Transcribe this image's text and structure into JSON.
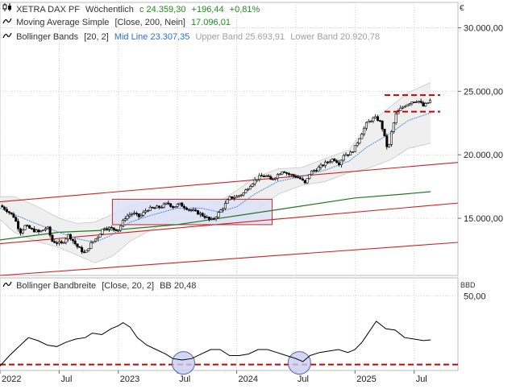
{
  "currency": "€",
  "legend": {
    "instrument": "XETRA DAX PF",
    "period": "Wöchentlich",
    "last": "c 24.359,30",
    "change_abs": "+196,44",
    "change_pct": "+0,81%",
    "ma_label": "Moving Average Simple",
    "ma_params": "[Close, 200, Nein]",
    "ma_value": "17.096,01",
    "bb_label": "Bollinger Bands",
    "bb_params": "[20, 2]",
    "bb_mid": "Mid Line 23.307,35",
    "bb_upper": "Upper Band 25.693,91",
    "bb_lower": "Lower Band 20.920,78"
  },
  "sub_legend": {
    "label": "Bollinger Bandbreite",
    "params": "[Close, 20, 2]",
    "value": "BB 20,48",
    "axis_unit": "BBD"
  },
  "colors": {
    "candle": "#000000",
    "ma": "#1f7a1f",
    "bb_mid": "#3b7fd9",
    "bb_band": "#efefef",
    "channel": "#cc2222",
    "box_fill": "#dde0f7",
    "box_stroke": "#cc2222",
    "circle_fill": "#c9cdf0",
    "circle_stroke": "#5a5fa8",
    "dashed": "#cc0000",
    "grid": "#d0d0d0",
    "green_text": "#1a8f1a",
    "blue_text": "#2a6fd6"
  },
  "chart_data": [
    {
      "type": "candlestick",
      "title": "XETRA DAX PF",
      "timeframe": "weekly",
      "y_ticks": [
        "30.000,00",
        "25.000,00",
        "20.000,00",
        "15.000,00"
      ],
      "y_tick_values": [
        30000,
        25000,
        20000,
        15000
      ],
      "ylim": [
        10500,
        32000
      ],
      "x_ticks": [
        "2022",
        "Jul",
        "2023",
        "Jul",
        "2024",
        "Jul",
        "2025",
        "Jul"
      ],
      "x_tick_values": [
        2022.0,
        2022.5,
        2023.0,
        2023.5,
        2024.0,
        2024.5,
        2025.0,
        2025.5
      ],
      "xlim": [
        2022.0,
        2025.87
      ],
      "grid": true,
      "close_path": [
        [
          2022.0,
          16000
        ],
        [
          2022.05,
          15700
        ],
        [
          2022.12,
          15100
        ],
        [
          2022.17,
          13900
        ],
        [
          2022.21,
          14400
        ],
        [
          2022.27,
          14100
        ],
        [
          2022.33,
          13900
        ],
        [
          2022.4,
          14300
        ],
        [
          2022.44,
          13200
        ],
        [
          2022.52,
          13000
        ],
        [
          2022.58,
          13700
        ],
        [
          2022.65,
          12800
        ],
        [
          2022.72,
          12200
        ],
        [
          2022.76,
          12900
        ],
        [
          2022.82,
          13500
        ],
        [
          2022.88,
          14300
        ],
        [
          2022.94,
          14200
        ],
        [
          2023.0,
          14100
        ],
        [
          2023.06,
          15100
        ],
        [
          2023.12,
          15400
        ],
        [
          2023.18,
          15100
        ],
        [
          2023.24,
          15700
        ],
        [
          2023.3,
          15800
        ],
        [
          2023.36,
          15900
        ],
        [
          2023.42,
          16200
        ],
        [
          2023.46,
          15900
        ],
        [
          2023.52,
          16100
        ],
        [
          2023.58,
          15800
        ],
        [
          2023.62,
          15600
        ],
        [
          2023.68,
          15400
        ],
        [
          2023.74,
          15100
        ],
        [
          2023.78,
          14800
        ],
        [
          2023.82,
          15100
        ],
        [
          2023.88,
          15800
        ],
        [
          2023.94,
          16600
        ],
        [
          2024.0,
          16700
        ],
        [
          2024.06,
          17000
        ],
        [
          2024.12,
          17700
        ],
        [
          2024.18,
          18200
        ],
        [
          2024.24,
          18400
        ],
        [
          2024.29,
          18000
        ],
        [
          2024.33,
          18300
        ],
        [
          2024.39,
          18800
        ],
        [
          2024.43,
          18500
        ],
        [
          2024.5,
          18300
        ],
        [
          2024.54,
          18100
        ],
        [
          2024.58,
          17700
        ],
        [
          2024.62,
          18600
        ],
        [
          2024.7,
          19000
        ],
        [
          2024.76,
          19400
        ],
        [
          2024.82,
          19700
        ],
        [
          2024.87,
          19300
        ],
        [
          2024.9,
          20000
        ],
        [
          2024.96,
          20100
        ],
        [
          2025.0,
          20600
        ],
        [
          2025.04,
          21400
        ],
        [
          2025.1,
          22500
        ],
        [
          2025.14,
          22800
        ],
        [
          2025.18,
          22900
        ],
        [
          2025.22,
          22500
        ],
        [
          2025.26,
          21000
        ],
        [
          2025.28,
          20300
        ],
        [
          2025.31,
          21900
        ],
        [
          2025.35,
          23300
        ],
        [
          2025.42,
          23900
        ],
        [
          2025.48,
          24200
        ],
        [
          2025.53,
          24300
        ],
        [
          2025.58,
          23800
        ],
        [
          2025.64,
          24300
        ]
      ],
      "bollinger_mid_path": [
        [
          2022.0,
          15800
        ],
        [
          2022.12,
          15300
        ],
        [
          2022.3,
          14600
        ],
        [
          2022.5,
          13900
        ],
        [
          2022.65,
          13400
        ],
        [
          2022.8,
          13100
        ],
        [
          2022.95,
          13700
        ],
        [
          2023.1,
          14700
        ],
        [
          2023.3,
          15300
        ],
        [
          2023.5,
          15800
        ],
        [
          2023.7,
          15800
        ],
        [
          2023.85,
          15500
        ],
        [
          2024.0,
          15900
        ],
        [
          2024.15,
          16900
        ],
        [
          2024.35,
          17900
        ],
        [
          2024.55,
          18300
        ],
        [
          2024.75,
          18800
        ],
        [
          2024.95,
          19500
        ],
        [
          2025.1,
          20600
        ],
        [
          2025.3,
          21700
        ],
        [
          2025.45,
          22700
        ],
        [
          2025.64,
          23307
        ]
      ],
      "bollinger_upper_path": [
        [
          2022.0,
          16700
        ],
        [
          2022.12,
          16700
        ],
        [
          2022.3,
          16000
        ],
        [
          2022.5,
          15000
        ],
        [
          2022.65,
          14600
        ],
        [
          2022.8,
          14700
        ],
        [
          2022.95,
          15300
        ],
        [
          2023.1,
          16000
        ],
        [
          2023.3,
          16400
        ],
        [
          2023.5,
          16500
        ],
        [
          2023.7,
          16500
        ],
        [
          2023.85,
          16300
        ],
        [
          2024.0,
          17200
        ],
        [
          2024.15,
          18200
        ],
        [
          2024.35,
          18900
        ],
        [
          2024.55,
          19000
        ],
        [
          2024.75,
          19700
        ],
        [
          2024.95,
          20400
        ],
        [
          2025.1,
          22300
        ],
        [
          2025.3,
          23800
        ],
        [
          2025.45,
          24900
        ],
        [
          2025.64,
          25694
        ]
      ],
      "bollinger_lower_path": [
        [
          2022.0,
          14900
        ],
        [
          2022.12,
          13900
        ],
        [
          2022.3,
          13200
        ],
        [
          2022.5,
          12700
        ],
        [
          2022.65,
          12100
        ],
        [
          2022.8,
          11500
        ],
        [
          2022.95,
          12000
        ],
        [
          2023.1,
          13200
        ],
        [
          2023.3,
          14200
        ],
        [
          2023.5,
          15000
        ],
        [
          2023.7,
          15000
        ],
        [
          2023.85,
          14700
        ],
        [
          2024.0,
          14500
        ],
        [
          2024.15,
          15500
        ],
        [
          2024.35,
          16900
        ],
        [
          2024.55,
          17600
        ],
        [
          2024.75,
          17900
        ],
        [
          2024.95,
          18600
        ],
        [
          2025.1,
          18900
        ],
        [
          2025.3,
          19600
        ],
        [
          2025.45,
          20500
        ],
        [
          2025.64,
          20921
        ]
      ],
      "ma200_path": [
        [
          2022.0,
          13300
        ],
        [
          2022.5,
          13900
        ],
        [
          2023.0,
          14100
        ],
        [
          2023.5,
          14500
        ],
        [
          2024.0,
          15200
        ],
        [
          2024.5,
          15900
        ],
        [
          2025.0,
          16600
        ],
        [
          2025.4,
          16900
        ],
        [
          2025.64,
          17096
        ]
      ],
      "channel_lines": [
        {
          "from": [
            2022.0,
            16300
          ],
          "to": [
            2025.87,
            19400
          ]
        },
        {
          "from": [
            2022.0,
            13000
          ],
          "to": [
            2025.87,
            16200
          ]
        },
        {
          "from": [
            2022.0,
            10500
          ],
          "to": [
            2025.87,
            13100
          ]
        }
      ],
      "consolidation_box": {
        "x": [
          2022.95,
          2024.3
        ],
        "y": [
          14500,
          16500
        ]
      },
      "resistance_dashes": [
        24700,
        23400
      ]
    },
    {
      "type": "line",
      "title": "Bollinger Bandbreite",
      "y_ticks": [
        "50,00"
      ],
      "y_tick_values": [
        50
      ],
      "ylim": [
        0,
        62
      ],
      "xlim": [
        2022.0,
        2025.87
      ],
      "grid": true,
      "series": [
        {
          "name": "BB 20,48",
          "x": [
            2022.0,
            2022.08,
            2022.16,
            2022.24,
            2022.32,
            2022.4,
            2022.48,
            2022.56,
            2022.64,
            2022.72,
            2022.78,
            2022.86,
            2022.94,
            2023.0,
            2023.04,
            2023.1,
            2023.16,
            2023.24,
            2023.32,
            2023.4,
            2023.46,
            2023.54,
            2023.62,
            2023.7,
            2023.78,
            2023.86,
            2023.94,
            2024.02,
            2024.1,
            2024.18,
            2024.26,
            2024.34,
            2024.42,
            2024.5,
            2024.56,
            2024.62,
            2024.7,
            2024.78,
            2024.86,
            2024.94,
            2025.0,
            2025.06,
            2025.12,
            2025.18,
            2025.26,
            2025.34,
            2025.42,
            2025.5,
            2025.58,
            2025.64
          ],
          "values": [
            3,
            10,
            16,
            22,
            20,
            17,
            16,
            19,
            21,
            22,
            25,
            24,
            28,
            30,
            32,
            29,
            22,
            17,
            14,
            11,
            8,
            7,
            8,
            11,
            14,
            14,
            10,
            10,
            11,
            14,
            14,
            12,
            10,
            8,
            6,
            10,
            12,
            13,
            14,
            12,
            14,
            19,
            26,
            33,
            28,
            27,
            22,
            21,
            20,
            20.48
          ]
        }
      ],
      "reference_line": 4,
      "highlight_circles_at": [
        2023.55,
        2024.53
      ]
    }
  ]
}
